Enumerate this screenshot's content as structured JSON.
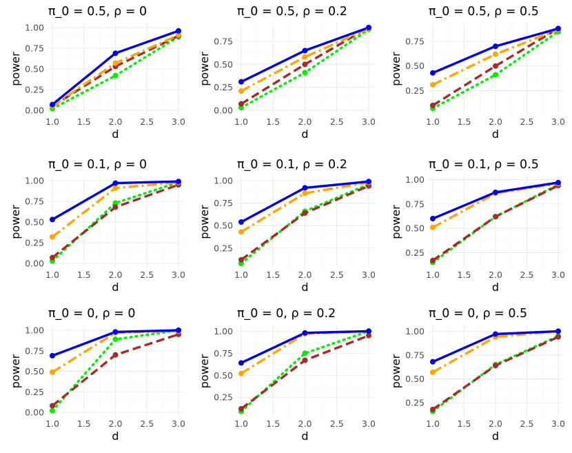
{
  "chart_data": [
    {
      "type": "line",
      "title": "π_0 = 0.5, ρ = 0",
      "xlabel": "d",
      "ylabel": "power",
      "xlim": [
        1.0,
        3.0
      ],
      "ylim": [
        0.0,
        1.0
      ],
      "xticks": [
        "1.0",
        "1.5",
        "2.0",
        "2.5",
        "3.0"
      ],
      "yticks": [
        "0.00",
        "0.25",
        "0.50",
        "0.75",
        "1.00"
      ],
      "x": [
        1.0,
        2.0,
        3.0
      ],
      "series": [
        {
          "values": [
            0.07,
            0.69,
            0.96
          ],
          "color": "#0000ee",
          "dash": "solid"
        },
        {
          "values": [
            0.05,
            0.57,
            0.91
          ],
          "color": "#ffa500",
          "dash": "dashdot"
        },
        {
          "values": [
            0.05,
            0.53,
            0.9
          ],
          "color": "#a52a2a",
          "dash": "longdash"
        },
        {
          "values": [
            0.02,
            0.42,
            0.89
          ],
          "color": "#00ee00",
          "dash": "dotted"
        }
      ]
    },
    {
      "type": "line",
      "title": "π_0 = 0.5, ρ = 0.2",
      "xlabel": "d",
      "ylabel": "power",
      "xlim": [
        1.0,
        3.0
      ],
      "ylim": [
        0.0,
        0.9
      ],
      "xticks": [
        "1.0",
        "1.5",
        "2.0",
        "2.5",
        "3.0"
      ],
      "yticks": [
        "0.00",
        "0.25",
        "0.50",
        "0.75"
      ],
      "x": [
        1.0,
        2.0,
        3.0
      ],
      "series": [
        {
          "values": [
            0.31,
            0.65,
            0.9
          ],
          "color": "#0000ee",
          "dash": "solid"
        },
        {
          "values": [
            0.21,
            0.58,
            0.89
          ],
          "color": "#ffa500",
          "dash": "dashdot"
        },
        {
          "values": [
            0.07,
            0.5,
            0.9
          ],
          "color": "#a52a2a",
          "dash": "longdash"
        },
        {
          "values": [
            0.03,
            0.41,
            0.88
          ],
          "color": "#00ee00",
          "dash": "dotted"
        }
      ]
    },
    {
      "type": "line",
      "title": "π_0 = 0.5, ρ = 0.5",
      "xlabel": "d",
      "ylabel": "power",
      "xlim": [
        1.0,
        3.0
      ],
      "ylim": [
        0.05,
        0.89
      ],
      "xticks": [
        "1.0",
        "1.5",
        "2.0",
        "2.5",
        "3.0"
      ],
      "yticks": [
        "0.25",
        "0.50",
        "0.75"
      ],
      "x": [
        1.0,
        2.0,
        3.0
      ],
      "series": [
        {
          "values": [
            0.43,
            0.7,
            0.88
          ],
          "color": "#0000ee",
          "dash": "solid"
        },
        {
          "values": [
            0.31,
            0.62,
            0.87
          ],
          "color": "#ffa500",
          "dash": "dashdot"
        },
        {
          "values": [
            0.1,
            0.5,
            0.88
          ],
          "color": "#a52a2a",
          "dash": "longdash"
        },
        {
          "values": [
            0.07,
            0.41,
            0.85
          ],
          "color": "#00ee00",
          "dash": "dotted"
        }
      ]
    },
    {
      "type": "line",
      "title": "π_0 = 0.1, ρ = 0",
      "xlabel": "d",
      "ylabel": "power",
      "xlim": [
        1.0,
        3.0
      ],
      "ylim": [
        0.0,
        1.0
      ],
      "xticks": [
        "1.0",
        "1.5",
        "2.0",
        "2.5",
        "3.0"
      ],
      "yticks": [
        "0.00",
        "0.25",
        "0.50",
        "0.75",
        "1.00"
      ],
      "x": [
        1.0,
        2.0,
        3.0
      ],
      "series": [
        {
          "values": [
            0.53,
            0.97,
            0.99
          ],
          "color": "#0000ee",
          "dash": "solid"
        },
        {
          "values": [
            0.32,
            0.91,
            0.98
          ],
          "color": "#ffa500",
          "dash": "dashdot"
        },
        {
          "values": [
            0.07,
            0.68,
            0.95
          ],
          "color": "#a52a2a",
          "dash": "longdash"
        },
        {
          "values": [
            0.03,
            0.73,
            0.98
          ],
          "color": "#00ee00",
          "dash": "dotted"
        }
      ]
    },
    {
      "type": "line",
      "title": "π_0 = 0.1, ρ = 0.2",
      "xlabel": "d",
      "ylabel": "power",
      "xlim": [
        1.0,
        3.0
      ],
      "ylim": [
        0.08,
        1.0
      ],
      "xticks": [
        "1.0",
        "1.5",
        "2.0",
        "2.5",
        "3.0"
      ],
      "yticks": [
        "0.25",
        "0.50",
        "0.75",
        "1.00"
      ],
      "x": [
        1.0,
        2.0,
        3.0
      ],
      "series": [
        {
          "values": [
            0.54,
            0.92,
            0.99
          ],
          "color": "#0000ee",
          "dash": "solid"
        },
        {
          "values": [
            0.43,
            0.86,
            0.98
          ],
          "color": "#ffa500",
          "dash": "dashdot"
        },
        {
          "values": [
            0.12,
            0.64,
            0.94
          ],
          "color": "#a52a2a",
          "dash": "longdash"
        },
        {
          "values": [
            0.08,
            0.66,
            0.96
          ],
          "color": "#00ee00",
          "dash": "dotted"
        }
      ]
    },
    {
      "type": "line",
      "title": "π_0 = 0.1, ρ = 0.5",
      "xlabel": "d",
      "ylabel": "power",
      "xlim": [
        1.0,
        3.0
      ],
      "ylim": [
        0.14,
        0.99
      ],
      "xticks": [
        "1.0",
        "1.5",
        "2.0",
        "2.5",
        "3.0"
      ],
      "yticks": [
        "0.25",
        "0.50",
        "0.75",
        "1.00"
      ],
      "x": [
        1.0,
        2.0,
        3.0
      ],
      "series": [
        {
          "values": [
            0.6,
            0.87,
            0.97
          ],
          "color": "#0000ee",
          "dash": "solid"
        },
        {
          "values": [
            0.51,
            0.86,
            0.96
          ],
          "color": "#ffa500",
          "dash": "dashdot"
        },
        {
          "values": [
            0.17,
            0.62,
            0.94
          ],
          "color": "#a52a2a",
          "dash": "longdash"
        },
        {
          "values": [
            0.15,
            0.62,
            0.95
          ],
          "color": "#00ee00",
          "dash": "dotted"
        }
      ]
    },
    {
      "type": "line",
      "title": "π_0 = 0, ρ = 0",
      "xlabel": "d",
      "ylabel": "power",
      "xlim": [
        1.0,
        3.0
      ],
      "ylim": [
        0.0,
        1.0
      ],
      "xticks": [
        "1.0",
        "1.5",
        "2.0",
        "2.5",
        "3.0"
      ],
      "yticks": [
        "0.00",
        "0.25",
        "0.50",
        "0.75",
        "1.00"
      ],
      "x": [
        1.0,
        2.0,
        3.0
      ],
      "series": [
        {
          "values": [
            0.69,
            0.98,
            1.0
          ],
          "color": "#0000ee",
          "dash": "solid"
        },
        {
          "values": [
            0.49,
            0.97,
            0.99
          ],
          "color": "#ffa500",
          "dash": "dashdot"
        },
        {
          "values": [
            0.08,
            0.7,
            0.95
          ],
          "color": "#a52a2a",
          "dash": "longdash"
        },
        {
          "values": [
            0.02,
            0.89,
            1.0
          ],
          "color": "#00ee00",
          "dash": "dotted"
        }
      ]
    },
    {
      "type": "line",
      "title": "π_0 = 0, ρ = 0.2",
      "xlabel": "d",
      "ylabel": "power",
      "xlim": [
        1.0,
        3.0
      ],
      "ylim": [
        0.08,
        1.01
      ],
      "xticks": [
        "1.0",
        "1.5",
        "2.0",
        "2.5",
        "3.0"
      ],
      "yticks": [
        "0.25",
        "0.50",
        "0.75",
        "1.00"
      ],
      "x": [
        1.0,
        2.0,
        3.0
      ],
      "series": [
        {
          "values": [
            0.64,
            0.98,
            1.0
          ],
          "color": "#0000ee",
          "dash": "solid"
        },
        {
          "values": [
            0.52,
            0.97,
            1.0
          ],
          "color": "#ffa500",
          "dash": "dashdot"
        },
        {
          "values": [
            0.12,
            0.67,
            0.95
          ],
          "color": "#a52a2a",
          "dash": "longdash"
        },
        {
          "values": [
            0.09,
            0.75,
            1.0
          ],
          "color": "#00ee00",
          "dash": "dotted"
        }
      ]
    },
    {
      "type": "line",
      "title": "π_0 = 0, ρ = 0.5",
      "xlabel": "d",
      "ylabel": "power",
      "xlim": [
        1.0,
        3.0
      ],
      "ylim": [
        0.15,
        1.01
      ],
      "xticks": [
        "1.0",
        "1.5",
        "2.0",
        "2.5",
        "3.0"
      ],
      "yticks": [
        "0.25",
        "0.50",
        "0.75",
        "1.00"
      ],
      "x": [
        1.0,
        2.0,
        3.0
      ],
      "series": [
        {
          "values": [
            0.68,
            0.97,
            1.0
          ],
          "color": "#0000ee",
          "dash": "solid"
        },
        {
          "values": [
            0.57,
            0.94,
            1.0
          ],
          "color": "#ffa500",
          "dash": "dashdot"
        },
        {
          "values": [
            0.18,
            0.64,
            0.94
          ],
          "color": "#a52a2a",
          "dash": "longdash"
        },
        {
          "values": [
            0.16,
            0.65,
            0.95
          ],
          "color": "#00ee00",
          "dash": "dotted"
        }
      ]
    }
  ]
}
